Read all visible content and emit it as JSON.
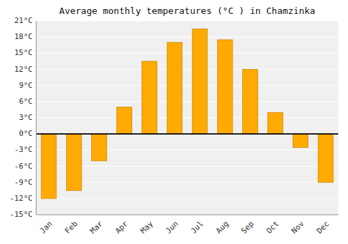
{
  "chart_data": {
    "type": "bar",
    "title": "Average monthly temperatures (°C ) in Chamzinka",
    "categories": [
      "Jan",
      "Feb",
      "Mar",
      "Apr",
      "May",
      "Jun",
      "Jul",
      "Aug",
      "Sep",
      "Oct",
      "Nov",
      "Dec"
    ],
    "values": [
      -12,
      -10.5,
      -5,
      5,
      13.5,
      17,
      19.5,
      17.5,
      12,
      4,
      -2.5,
      -9
    ],
    "color": "#FFAA00",
    "ylim": [
      -15,
      21
    ],
    "yticks": [
      {
        "value": -15,
        "label": "-15°C"
      },
      {
        "value": -12,
        "label": "-12°C"
      },
      {
        "value": -9,
        "label": "-9°C"
      },
      {
        "value": -6,
        "label": "-6°C"
      },
      {
        "value": -3,
        "label": "-3°C"
      },
      {
        "value": 0,
        "label": "0°C"
      },
      {
        "value": 3,
        "label": "3°C"
      },
      {
        "value": 6,
        "label": "6°C"
      },
      {
        "value": 9,
        "label": "9°C"
      },
      {
        "value": 12,
        "label": "12°C"
      },
      {
        "value": 15,
        "label": "15°C"
      },
      {
        "value": 18,
        "label": "18°C"
      },
      {
        "value": 21,
        "label": "21°C"
      }
    ],
    "grid": true
  }
}
